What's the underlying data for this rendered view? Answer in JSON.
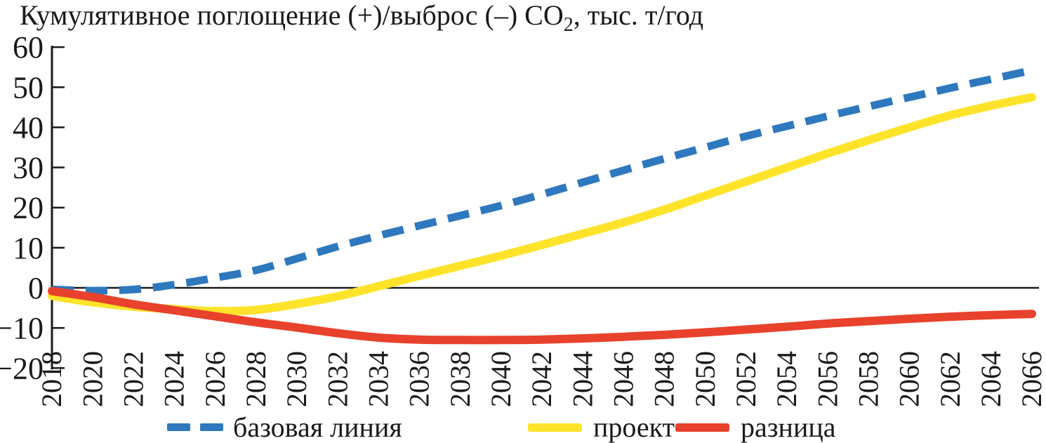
{
  "title": {
    "prefix": "Кумулятивное поглощение (+)/выброс (–) CO",
    "sub": "2",
    "suffix": ", тыс. т/год"
  },
  "chart_data": {
    "type": "line",
    "title": "Кумулятивное поглощение (+)/выброс (–) CO2, тыс. т/год",
    "xlabel": "",
    "ylabel": "тыс. т/год",
    "x": [
      2018,
      2020,
      2022,
      2024,
      2026,
      2028,
      2030,
      2032,
      2034,
      2036,
      2038,
      2040,
      2042,
      2044,
      2046,
      2048,
      2050,
      2052,
      2054,
      2056,
      2058,
      2060,
      2062,
      2064,
      2066
    ],
    "series": [
      {
        "name": "базовая линия",
        "color": "#2E78BE",
        "style": "dashed",
        "values": [
          -0.4,
          -0.7,
          -0.4,
          0.8,
          2.5,
          4.4,
          7.3,
          10.3,
          13,
          15.5,
          18,
          20.5,
          23.3,
          26.3,
          29.3,
          32.2,
          35,
          37.8,
          40.3,
          42.8,
          45.2,
          47.5,
          49.8,
          52,
          54.2
        ]
      },
      {
        "name": "проект",
        "color": "#FFE32A",
        "style": "solid",
        "values": [
          -2,
          -3.6,
          -4.7,
          -5.3,
          -5.8,
          -5.5,
          -4,
          -2.1,
          0.4,
          3,
          5.5,
          8,
          10.7,
          13.5,
          16.3,
          19.5,
          23,
          26.5,
          30,
          33.5,
          36.8,
          40,
          43,
          45.4,
          47.5
        ]
      },
      {
        "name": "разница",
        "color": "#E8422C",
        "style": "solid",
        "values": [
          -0.8,
          -2.3,
          -4.1,
          -5.6,
          -7.1,
          -8.6,
          -9.9,
          -11.3,
          -12.4,
          -12.9,
          -13,
          -13,
          -12.9,
          -12.6,
          -12.2,
          -11.7,
          -11.1,
          -10.4,
          -9.7,
          -8.9,
          -8.3,
          -7.7,
          -7.2,
          -6.8,
          -6.5
        ]
      }
    ],
    "ylim": [
      -20,
      60
    ],
    "ytick_step": 10,
    "grid": false,
    "legend_position": "bottom",
    "axis_color": "#1a1a1a",
    "zero_line": true
  }
}
